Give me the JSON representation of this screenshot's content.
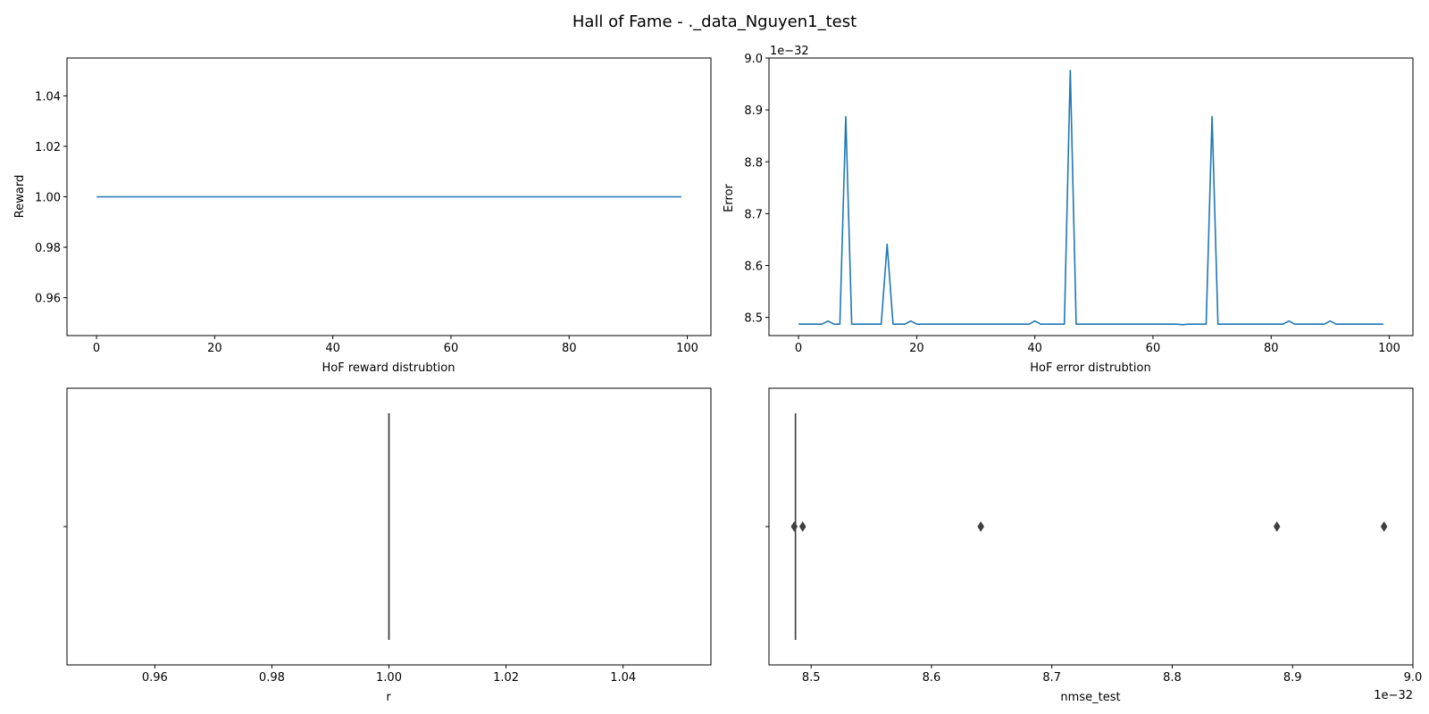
{
  "figure": {
    "title": "Hall of Fame - ._data_Nguyen1_test"
  },
  "chart_data": [
    {
      "type": "line",
      "position": "top-left",
      "xlabel": "HoF reward distrubtion",
      "ylabel": "Reward",
      "xlim": [
        -5,
        104
      ],
      "ylim": [
        0.945,
        1.055
      ],
      "xticks": [
        0,
        20,
        40,
        60,
        80,
        100
      ],
      "xtick_labels": [
        "0",
        "20",
        "40",
        "60",
        "80",
        "100"
      ],
      "yticks": [
        0.96,
        0.98,
        1.0,
        1.02,
        1.04
      ],
      "ytick_labels": [
        "0.96",
        "0.98",
        "1.00",
        "1.02",
        "1.04"
      ],
      "series": [
        {
          "name": "r",
          "color": "#1f77b4",
          "x_start": 0,
          "x_end": 99,
          "constant": 1.0
        }
      ]
    },
    {
      "type": "line",
      "position": "top-right",
      "xlabel": "HoF error distrubtion",
      "ylabel": "Error",
      "offset_label": "1e−32",
      "xlim": [
        -5,
        104
      ],
      "ylim": [
        8.465,
        9.0
      ],
      "xticks": [
        0,
        20,
        40,
        60,
        80,
        100
      ],
      "xtick_labels": [
        "0",
        "20",
        "40",
        "60",
        "80",
        "100"
      ],
      "yticks": [
        8.5,
        8.6,
        8.7,
        8.8,
        8.9,
        9.0
      ],
      "ytick_labels": [
        "8.5",
        "8.6",
        "8.7",
        "8.8",
        "8.9",
        "9.0"
      ],
      "series": [
        {
          "name": "error",
          "color": "#1f77b4",
          "x_start": 0,
          "x_end": 99,
          "base": 8.487,
          "points": [
            [
              0,
              8.487
            ],
            [
              4,
              8.487
            ],
            [
              5,
              8.493
            ],
            [
              6,
              8.487
            ],
            [
              7,
              8.487
            ],
            [
              8,
              8.887
            ],
            [
              9,
              8.487
            ],
            [
              14,
              8.487
            ],
            [
              15,
              8.641
            ],
            [
              16,
              8.487
            ],
            [
              18,
              8.487
            ],
            [
              19,
              8.493
            ],
            [
              20,
              8.487
            ],
            [
              39,
              8.487
            ],
            [
              40,
              8.493
            ],
            [
              41,
              8.487
            ],
            [
              45,
              8.487
            ],
            [
              46,
              8.976
            ],
            [
              47,
              8.487
            ],
            [
              64,
              8.487
            ],
            [
              65,
              8.486
            ],
            [
              66,
              8.487
            ],
            [
              69,
              8.487
            ],
            [
              70,
              8.887
            ],
            [
              71,
              8.487
            ],
            [
              82,
              8.487
            ],
            [
              83,
              8.493
            ],
            [
              84,
              8.487
            ],
            [
              89,
              8.487
            ],
            [
              90,
              8.493
            ],
            [
              91,
              8.487
            ],
            [
              99,
              8.487
            ]
          ]
        }
      ]
    },
    {
      "type": "box",
      "position": "bottom-left",
      "xlabel": "r",
      "ylabel": "",
      "xlim": [
        0.945,
        1.055
      ],
      "xticks": [
        0.96,
        0.98,
        1.0,
        1.02,
        1.04
      ],
      "xtick_labels": [
        "0.96",
        "0.98",
        "1.00",
        "1.02",
        "1.04"
      ],
      "box": {
        "min": 1.0,
        "q1": 1.0,
        "median": 1.0,
        "q3": 1.0,
        "max": 1.0,
        "outliers": []
      }
    },
    {
      "type": "box",
      "position": "bottom-right",
      "xlabel": "nmse_test",
      "ylabel": "",
      "offset_label": "1e−32",
      "xlim": [
        8.465,
        9.0
      ],
      "xticks": [
        8.5,
        8.6,
        8.7,
        8.8,
        8.9,
        9.0
      ],
      "xtick_labels": [
        "8.5",
        "8.6",
        "8.7",
        "8.8",
        "8.9",
        "9.0"
      ],
      "box": {
        "min": 8.487,
        "q1": 8.487,
        "median": 8.487,
        "q3": 8.487,
        "max": 8.487,
        "outliers": [
          8.486,
          8.493,
          8.641,
          8.887,
          8.976
        ]
      }
    }
  ]
}
